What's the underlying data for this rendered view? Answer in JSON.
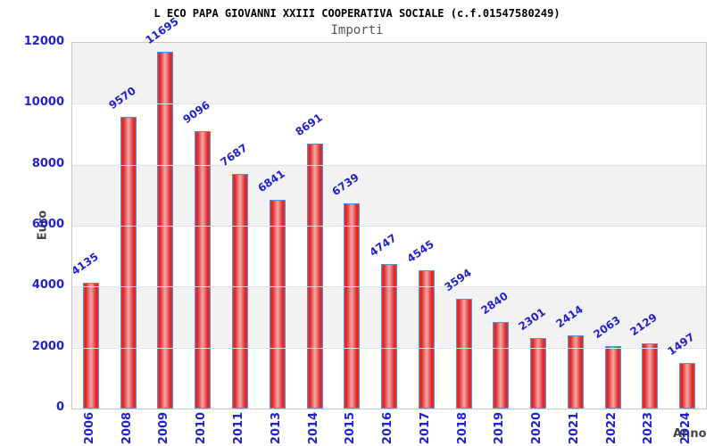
{
  "header": {
    "title": "L ECO PAPA GIOVANNI XXIII COOPERATIVA SOCIALE (c.f.01547580249)",
    "subtitle": "Importi"
  },
  "chart_data": {
    "type": "bar",
    "title": "Importi",
    "categories": [
      "2006",
      "2008",
      "2009",
      "2010",
      "2011",
      "2013",
      "2014",
      "2015",
      "2016",
      "2017",
      "2018",
      "2019",
      "2020",
      "2021",
      "2022",
      "2023",
      "2024"
    ],
    "values": [
      4135,
      9570,
      11695,
      9096,
      7687,
      6841,
      8691,
      6739,
      4747,
      4545,
      3594,
      2840,
      2301,
      2414,
      2063,
      2129,
      1497
    ],
    "xlabel": "Anno",
    "ylabel": "Euro",
    "ylim": [
      0,
      12000
    ],
    "yticks": [
      0,
      2000,
      4000,
      6000,
      8000,
      10000,
      12000
    ],
    "grid": "alternating-horizontal-bands",
    "legend": "none",
    "value_labels_rotated": true,
    "colors": {
      "bar_edge": "#5590dd",
      "bar_fill_dark": "#e63030",
      "bar_fill_light": "#f6a8a8",
      "tick_label": "#2222cc",
      "value_label": "#2222cc",
      "axis_title": "#444444",
      "band_gray": "#f2f2f2",
      "band_white": "#ffffff",
      "plot_border": "#c8c8c8",
      "title": "#000000",
      "subtitle": "#555555"
    }
  }
}
